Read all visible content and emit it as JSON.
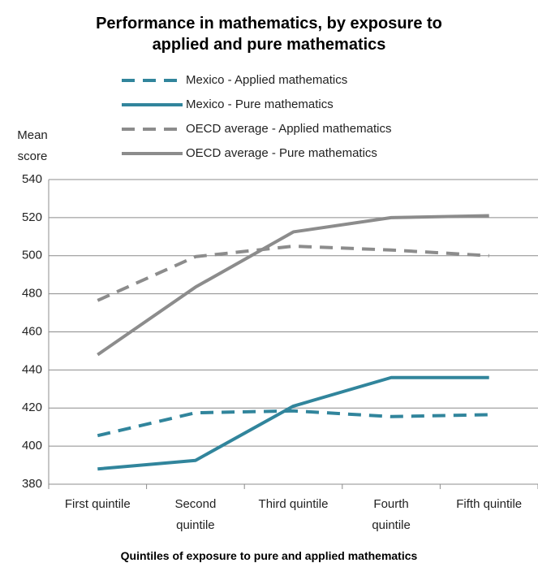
{
  "chart_data": {
    "type": "line",
    "title": "Performance in mathematics, by exposure to\napplied and pure mathematics",
    "y_label": "Mean\nscore",
    "x_label": "Quintiles of exposure to pure and applied mathematics",
    "categories": [
      "First quintile",
      "Second\nquintile",
      "Third quintile",
      "Fourth\nquintile",
      "Fifth quintile"
    ],
    "series": [
      {
        "name": "Mexico - Applied mathematics",
        "color": "#31859c",
        "dash": true,
        "values": [
          405.5,
          417.5,
          418.5,
          415.5,
          416.5
        ]
      },
      {
        "name": "Mexico - Pure mathematics",
        "color": "#31859c",
        "dash": false,
        "values": [
          388,
          392.5,
          421,
          436,
          436
        ]
      },
      {
        "name": "OECD average - Applied mathematics",
        "color": "#8c8c8c",
        "dash": true,
        "values": [
          476.5,
          499.5,
          505,
          503,
          500
        ]
      },
      {
        "name": "OECD average - Pure mathematics",
        "color": "#8c8c8c",
        "dash": false,
        "values": [
          448,
          483.5,
          512.5,
          520,
          521
        ]
      }
    ],
    "ylim": [
      380,
      540
    ],
    "yticks": [
      380,
      400,
      420,
      440,
      460,
      480,
      500,
      520,
      540
    ],
    "grid": true
  }
}
